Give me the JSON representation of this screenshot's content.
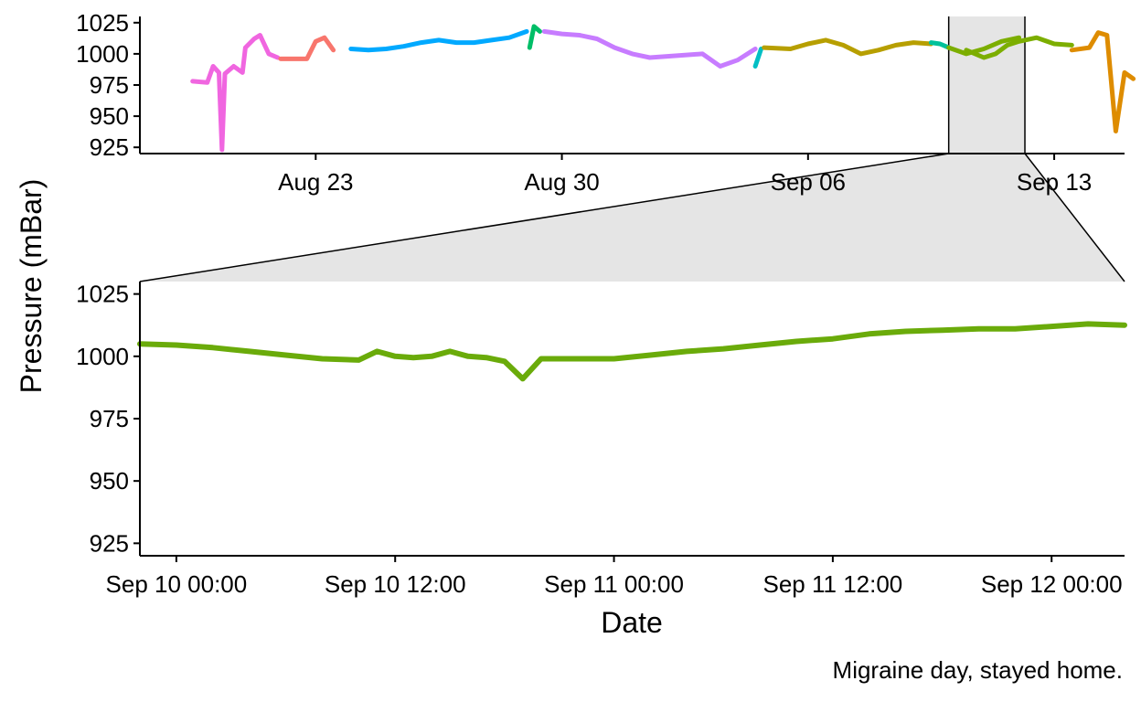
{
  "chart_data": [
    {
      "panel": "overview",
      "type": "line",
      "x_kind": "date",
      "xlim": [
        "2021-08-18",
        "2021-09-15"
      ],
      "ylim": [
        920,
        1030
      ],
      "x_ticks": [
        {
          "value": "2021-08-23",
          "label": "Aug 23"
        },
        {
          "value": "2021-08-30",
          "label": "Aug 30"
        },
        {
          "value": "2021-09-06",
          "label": "Sep 06"
        },
        {
          "value": "2021-09-13",
          "label": "Sep 13"
        }
      ],
      "y_ticks": [
        925,
        950,
        975,
        1000,
        1025
      ],
      "zoom_window": [
        "2021-09-10T00:00",
        "2021-09-12T04:00"
      ],
      "zoom_fill": "#e5e5e5",
      "series": [
        {
          "color": "#f066e0",
          "points": [
            [
              "2021-08-19T12:00",
              978
            ],
            [
              "2021-08-19T22:00",
              977
            ],
            [
              "2021-08-20T02:00",
              990
            ],
            [
              "2021-08-20T06:00",
              985
            ],
            [
              "2021-08-20T08:00",
              923
            ],
            [
              "2021-08-20T10:00",
              984
            ],
            [
              "2021-08-20T16:00",
              990
            ],
            [
              "2021-08-20T22:00",
              985
            ],
            [
              "2021-08-21T00:00",
              1005
            ],
            [
              "2021-08-21T06:00",
              1012
            ],
            [
              "2021-08-21T10:00",
              1015
            ],
            [
              "2021-08-21T12:00",
              1010
            ],
            [
              "2021-08-21T16:00",
              1000
            ],
            [
              "2021-08-21T22:00",
              997
            ]
          ]
        },
        {
          "color": "#f8766d",
          "points": [
            [
              "2021-08-22T00:00",
              996
            ],
            [
              "2021-08-22T10:00",
              996
            ],
            [
              "2021-08-22T18:00",
              996
            ],
            [
              "2021-08-23T00:00",
              1010
            ],
            [
              "2021-08-23T06:00",
              1013
            ],
            [
              "2021-08-23T12:00",
              1003
            ]
          ]
        },
        {
          "color": "#00a9ff",
          "points": [
            [
              "2021-08-24T00:00",
              1004
            ],
            [
              "2021-08-24T12:00",
              1003
            ],
            [
              "2021-08-25T00:00",
              1004
            ],
            [
              "2021-08-25T12:00",
              1006
            ],
            [
              "2021-08-26T00:00",
              1009
            ],
            [
              "2021-08-26T12:00",
              1011
            ],
            [
              "2021-08-27T00:00",
              1009
            ],
            [
              "2021-08-27T12:00",
              1009
            ],
            [
              "2021-08-28T00:00",
              1011
            ],
            [
              "2021-08-28T12:00",
              1013
            ],
            [
              "2021-08-29T00:00",
              1018
            ]
          ]
        },
        {
          "color": "#00be67",
          "points": [
            [
              "2021-08-29T02:00",
              1005
            ],
            [
              "2021-08-29T05:00",
              1022
            ],
            [
              "2021-08-29T09:00",
              1018
            ]
          ]
        },
        {
          "color": "#c77cff",
          "points": [
            [
              "2021-08-29T12:00",
              1018
            ],
            [
              "2021-08-30T00:00",
              1016
            ],
            [
              "2021-08-30T12:00",
              1015
            ],
            [
              "2021-08-31T00:00",
              1012
            ],
            [
              "2021-08-31T12:00",
              1005
            ],
            [
              "2021-09-01T00:00",
              1000
            ],
            [
              "2021-09-01T12:00",
              997
            ],
            [
              "2021-09-02T00:00",
              998
            ],
            [
              "2021-09-02T12:00",
              999
            ],
            [
              "2021-09-03T00:00",
              1000
            ],
            [
              "2021-09-03T12:00",
              990
            ],
            [
              "2021-09-04T00:00",
              995
            ],
            [
              "2021-09-04T12:00",
              1004
            ]
          ]
        },
        {
          "color": "#00bfc4",
          "points": [
            [
              "2021-09-04T12:00",
              990
            ],
            [
              "2021-09-04T16:00",
              1004
            ]
          ]
        },
        {
          "color": "#b79f00",
          "points": [
            [
              "2021-09-04T18:00",
              1005
            ],
            [
              "2021-09-05T12:00",
              1004
            ],
            [
              "2021-09-06T00:00",
              1008
            ],
            [
              "2021-09-06T12:00",
              1011
            ],
            [
              "2021-09-07T00:00",
              1007
            ],
            [
              "2021-09-07T12:00",
              1000
            ],
            [
              "2021-09-08T00:00",
              1003
            ],
            [
              "2021-09-08T12:00",
              1007
            ],
            [
              "2021-09-09T00:00",
              1009
            ],
            [
              "2021-09-09T12:00",
              1008
            ]
          ]
        },
        {
          "color": "#00c19a",
          "points": [
            [
              "2021-09-09T12:00",
              1009
            ],
            [
              "2021-09-09T18:00",
              1008
            ],
            [
              "2021-09-10T00:00",
              1005
            ]
          ]
        },
        {
          "color": "#7cae00",
          "points": [
            [
              "2021-09-10T00:00",
              1005
            ],
            [
              "2021-09-10T12:00",
              1000
            ],
            [
              "2021-09-11T00:00",
              1004
            ],
            [
              "2021-09-11T12:00",
              1010
            ],
            [
              "2021-09-12T00:00",
              1013
            ]
          ]
        },
        {
          "color": "#7cae00",
          "points": [
            [
              "2021-09-10T12:00",
              1003
            ],
            [
              "2021-09-11T00:00",
              997
            ],
            [
              "2021-09-11T08:00",
              1000
            ],
            [
              "2021-09-11T16:00",
              1007
            ],
            [
              "2021-09-12T00:00",
              1010
            ],
            [
              "2021-09-12T12:00",
              1013
            ],
            [
              "2021-09-13T00:00",
              1008
            ],
            [
              "2021-09-13T12:00",
              1007
            ]
          ]
        },
        {
          "color": "#de8c00",
          "points": [
            [
              "2021-09-13T12:00",
              1003
            ],
            [
              "2021-09-14T00:00",
              1005
            ],
            [
              "2021-09-14T06:00",
              1017
            ],
            [
              "2021-09-14T12:00",
              1015
            ],
            [
              "2021-09-14T18:00",
              938
            ],
            [
              "2021-09-15T00:00",
              985
            ],
            [
              "2021-09-15T06:00",
              980
            ]
          ]
        }
      ]
    },
    {
      "panel": "zoom",
      "type": "line",
      "x_kind": "date",
      "xlim": [
        "2021-09-09T22:00",
        "2021-09-12T04:00"
      ],
      "ylim": [
        920,
        1030
      ],
      "x_ticks": [
        {
          "value": "2021-09-10T00:00",
          "label": "Sep 10 00:00"
        },
        {
          "value": "2021-09-10T12:00",
          "label": "Sep 10 12:00"
        },
        {
          "value": "2021-09-11T00:00",
          "label": "Sep 11 00:00"
        },
        {
          "value": "2021-09-11T12:00",
          "label": "Sep 11 12:00"
        },
        {
          "value": "2021-09-12T00:00",
          "label": "Sep 12 00:00"
        }
      ],
      "y_ticks": [
        925,
        950,
        975,
        1000,
        1025
      ],
      "xlabel": "Date",
      "ylabel": "Pressure (mBar)",
      "series": [
        {
          "color": "#6aab0a",
          "points": [
            [
              "2021-09-09T22:00",
              1005
            ],
            [
              "2021-09-10T00:00",
              1004.5
            ],
            [
              "2021-09-10T02:00",
              1003.5
            ],
            [
              "2021-09-10T04:00",
              1002
            ],
            [
              "2021-09-10T06:00",
              1000.5
            ],
            [
              "2021-09-10T08:00",
              999
            ],
            [
              "2021-09-10T10:00",
              998.5
            ],
            [
              "2021-09-10T11:00",
              1002
            ],
            [
              "2021-09-10T12:00",
              1000
            ],
            [
              "2021-09-10T13:00",
              999.5
            ],
            [
              "2021-09-10T14:00",
              1000
            ],
            [
              "2021-09-10T15:00",
              1002
            ],
            [
              "2021-09-10T16:00",
              1000
            ],
            [
              "2021-09-10T17:00",
              999.5
            ],
            [
              "2021-09-10T18:00",
              998
            ],
            [
              "2021-09-10T19:00",
              991
            ],
            [
              "2021-09-10T20:00",
              999
            ],
            [
              "2021-09-10T22:00",
              999
            ],
            [
              "2021-09-11T00:00",
              999
            ],
            [
              "2021-09-11T02:00",
              1000.5
            ],
            [
              "2021-09-11T04:00",
              1002
            ],
            [
              "2021-09-11T06:00",
              1003
            ],
            [
              "2021-09-11T08:00",
              1004.5
            ],
            [
              "2021-09-11T10:00",
              1006
            ],
            [
              "2021-09-11T12:00",
              1007
            ],
            [
              "2021-09-11T14:00",
              1009
            ],
            [
              "2021-09-11T16:00",
              1010
            ],
            [
              "2021-09-11T18:00",
              1010.5
            ],
            [
              "2021-09-11T20:00",
              1011
            ],
            [
              "2021-09-11T22:00",
              1011
            ],
            [
              "2021-09-12T00:00",
              1012
            ],
            [
              "2021-09-12T02:00",
              1013
            ],
            [
              "2021-09-12T04:00",
              1012.5
            ]
          ]
        }
      ]
    }
  ],
  "caption": "Migraine day, stayed home."
}
